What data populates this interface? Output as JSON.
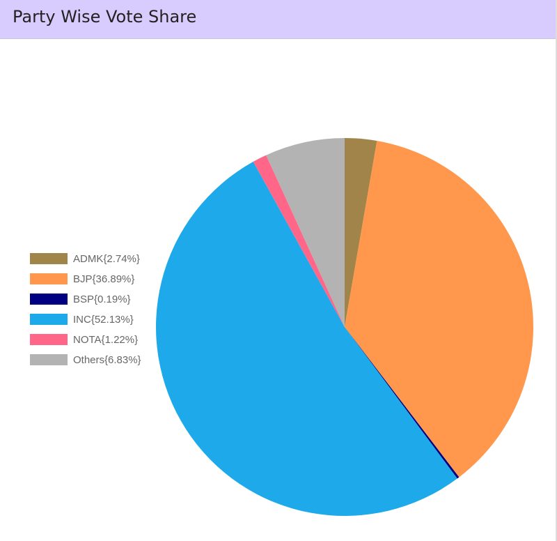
{
  "chart_data": {
    "type": "pie",
    "title": "Party Wise Vote Share",
    "categories": [
      "ADMK{2.74%}",
      "BJP{36.89%}",
      "BSP{0.19%}",
      "INC{52.13%}",
      "NOTA{1.22%}",
      "Others{6.83%}"
    ],
    "values": [
      2.74,
      36.89,
      0.19,
      52.13,
      1.22,
      6.83
    ],
    "colors": [
      "#a0844a",
      "#ff974d",
      "#000080",
      "#1eaaea",
      "#ff6688",
      "#b3b3b3"
    ],
    "legend": "left"
  }
}
